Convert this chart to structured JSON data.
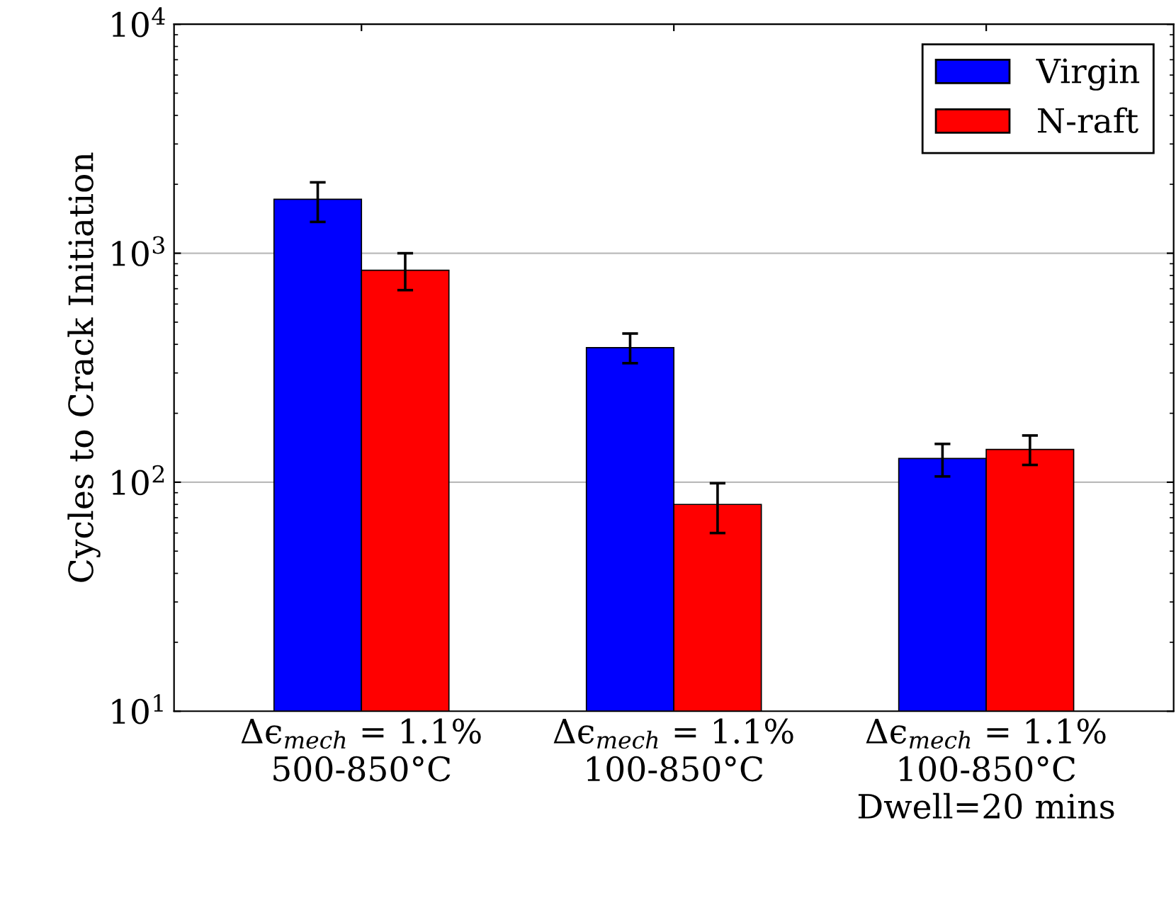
{
  "chart_data": {
    "type": "bar",
    "ylabel": "Cycles to Crack Initiation",
    "categories": [
      "Δϵ$_{mech}$ = 1.1%\n500-850°C",
      "Δϵ$_{mech}$ = 1.1%\n100-850°C",
      "Δϵ$_{mech}$ = 1.1%\n100-850°C\nDwell=20 mins"
    ],
    "series": [
      {
        "name": "Virgin",
        "color": "#0000ff",
        "values": [
          1720,
          387,
          127
        ],
        "errors": [
          [
            1370,
            2040
          ],
          [
            331,
            446
          ],
          [
            106,
            147
          ]
        ]
      },
      {
        "name": "N-raft",
        "color": "#ff0000",
        "values": [
          843,
          80,
          139
        ],
        "errors": [
          [
            690,
            1000
          ],
          [
            60,
            99
          ],
          [
            119,
            160
          ]
        ]
      }
    ],
    "log": "y",
    "ylim": [
      10,
      10000
    ],
    "yticks": [
      {
        "value": 10,
        "label": "10$^{1}$"
      },
      {
        "value": 100,
        "label": "10$^{2}$"
      },
      {
        "value": 1000,
        "label": "10$^{3}$"
      },
      {
        "value": 10000,
        "label": "10$^{4}$"
      }
    ],
    "grid": "y",
    "legend": "top right"
  }
}
